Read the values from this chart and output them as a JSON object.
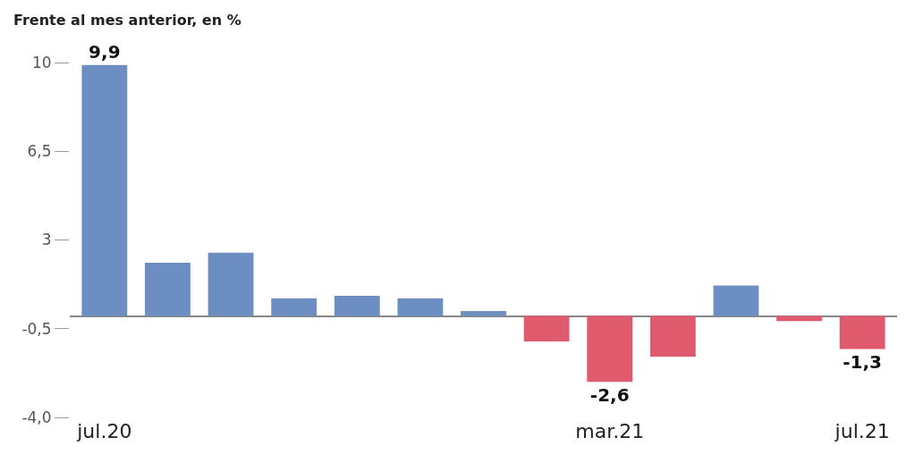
{
  "chart_data": {
    "type": "bar",
    "subtitle": "Frente al mes anterior, en %",
    "categories": [
      "jul.20",
      null,
      null,
      null,
      null,
      null,
      null,
      null,
      "mar.21",
      null,
      null,
      null,
      "jul.21"
    ],
    "values": [
      9.9,
      2.1,
      2.5,
      0.7,
      0.8,
      0.7,
      0.2,
      -1.0,
      -2.6,
      -1.6,
      1.2,
      -0.2,
      -1.3
    ],
    "colors": [
      "#6d8ec0",
      "#6d8ec0",
      "#6d8ec0",
      "#6d8ec0",
      "#6d8ec0",
      "#6d8ec0",
      "#6d8ec0",
      "#e05a6e",
      "#e05a6e",
      "#e05a6e",
      "#6d8ec0",
      "#e05a6e",
      "#e05a6e"
    ],
    "value_labels": [
      "9,9",
      null,
      null,
      null,
      null,
      null,
      null,
      null,
      "-2,6",
      null,
      null,
      null,
      "-1,3"
    ],
    "ylim": [
      -4,
      10
    ],
    "yticks": [
      {
        "value": 10,
        "label": "10"
      },
      {
        "value": 6.5,
        "label": "6,5"
      },
      {
        "value": 3,
        "label": "3"
      },
      {
        "value": -0.5,
        "label": "-0,5"
      },
      {
        "value": -4,
        "label": "-4,0"
      }
    ],
    "grid": false
  }
}
